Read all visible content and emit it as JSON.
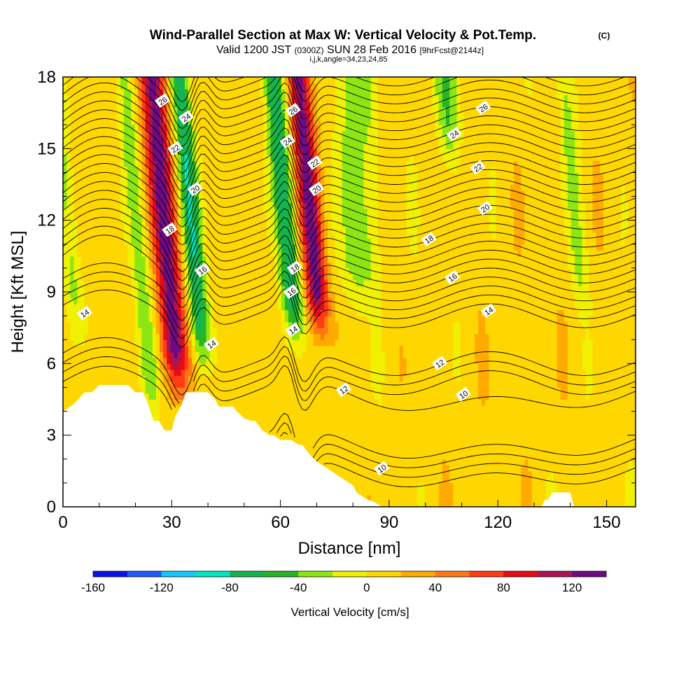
{
  "chart_data": {
    "type": "heatmap",
    "title": "Wind-Parallel Section at Max W: Vertical Velocity & Pot.Temp.",
    "title_mark": "(C)",
    "subtitle_main": "Valid 1200 JST",
    "subtitle_zulu": "(0300Z)",
    "subtitle_date": "SUN 28 Feb 2016",
    "subtitle_fcst": "[9hrFcst@2144z]",
    "subtitle2": "i,j,k,angle=34,23,24,85",
    "xlabel": "Distance [nm]",
    "ylabel": "Height [Kft MSL]",
    "xlim": [
      0,
      158
    ],
    "ylim": [
      0,
      18
    ],
    "x_ticks": [
      "0",
      "30",
      "60",
      "90",
      "120",
      "150"
    ],
    "y_ticks": [
      "0",
      "3",
      "6",
      "9",
      "12",
      "15",
      "18"
    ],
    "colorbar": {
      "label": "Vertical Velocity [cm/s]",
      "tick_labels": [
        "-160",
        "-120",
        "-80",
        "-40",
        "0",
        "40",
        "80",
        "120"
      ],
      "range": [
        -160,
        140
      ],
      "step": 20,
      "colors": [
        "#0a14e6",
        "#1e5aff",
        "#14c8ff",
        "#00e6be",
        "#14b450",
        "#28b428",
        "#8ce614",
        "#f0f000",
        "#ffd700",
        "#ffaa00",
        "#ff7814",
        "#ff3c14",
        "#e60a14",
        "#aa1450",
        "#6e0a82"
      ]
    },
    "field": {
      "background_value": 10,
      "plumes": [
        {
          "x": 29.5,
          "w": 3.5,
          "value": 125,
          "y_from": 5.5
        },
        {
          "x": 37,
          "w": 2.6,
          "value": -85,
          "y_from": 6.5
        },
        {
          "x": 63,
          "w": 2.8,
          "value": -85,
          "y_from": 7.8
        },
        {
          "x": 70,
          "w": 3.0,
          "value": 125,
          "y_from": 8.0
        },
        {
          "x": 82,
          "w": 5.0,
          "value": -40,
          "y_from": 9.0
        },
        {
          "x": 22,
          "w": 2.5,
          "value": -40,
          "y_from": 4.5
        },
        {
          "x": 110,
          "w": 3.5,
          "value": -40,
          "y_from": 15.0
        },
        {
          "x": 143,
          "w": 2.5,
          "value": -30,
          "y_from": 9.0
        },
        {
          "x": 3,
          "w": 2.5,
          "value": -30,
          "y_from": 8.0
        }
      ]
    },
    "isentropes": {
      "levels": [
        10,
        12,
        14,
        16,
        18,
        20,
        22,
        24,
        26
      ],
      "labels": [
        {
          "text": "26",
          "x": 27.5,
          "y": 17.0
        },
        {
          "text": "24",
          "x": 34,
          "y": 16.3
        },
        {
          "text": "22",
          "x": 31,
          "y": 15.0
        },
        {
          "text": "20",
          "x": 36.5,
          "y": 13.3
        },
        {
          "text": "18",
          "x": 29.5,
          "y": 11.6
        },
        {
          "text": "16",
          "x": 38.5,
          "y": 9.9
        },
        {
          "text": "14",
          "x": 6,
          "y": 8.1
        },
        {
          "text": "14",
          "x": 41,
          "y": 6.8
        },
        {
          "text": "26",
          "x": 63.5,
          "y": 16.6
        },
        {
          "text": "24",
          "x": 62,
          "y": 15.3
        },
        {
          "text": "22",
          "x": 69.5,
          "y": 14.4
        },
        {
          "text": "20",
          "x": 70,
          "y": 13.3
        },
        {
          "text": "18",
          "x": 64,
          "y": 10.0
        },
        {
          "text": "16",
          "x": 63,
          "y": 9.0
        },
        {
          "text": "14",
          "x": 63.5,
          "y": 7.4
        },
        {
          "text": "12",
          "x": 77.5,
          "y": 4.9
        },
        {
          "text": "10",
          "x": 88,
          "y": 1.6
        },
        {
          "text": "26",
          "x": 116,
          "y": 16.7
        },
        {
          "text": "24",
          "x": 108,
          "y": 15.6
        },
        {
          "text": "22",
          "x": 114.5,
          "y": 14.2
        },
        {
          "text": "20",
          "x": 116.5,
          "y": 12.5
        },
        {
          "text": "18",
          "x": 101,
          "y": 11.2
        },
        {
          "text": "16",
          "x": 107.5,
          "y": 9.6
        },
        {
          "text": "14",
          "x": 117.5,
          "y": 8.2
        },
        {
          "text": "12",
          "x": 104,
          "y": 6.0
        },
        {
          "text": "10",
          "x": 110.5,
          "y": 4.7
        }
      ]
    },
    "terrain": {
      "x": [
        0,
        3,
        6,
        8,
        10,
        14,
        18,
        20,
        22,
        23,
        25,
        26.5,
        28,
        30,
        31,
        32.5,
        34,
        35,
        36.5,
        38,
        40,
        42,
        43,
        45,
        47,
        48,
        50,
        52,
        53,
        55,
        57,
        58,
        60,
        62,
        63,
        65,
        66,
        68,
        70,
        72,
        74,
        76,
        78,
        80,
        81,
        84,
        86,
        88,
        89,
        90,
        92,
        94,
        120,
        132,
        133,
        134,
        135,
        140,
        141,
        150,
        158
      ],
      "y": [
        4.0,
        4.3,
        4.8,
        4.8,
        5.1,
        5.1,
        5.1,
        4.8,
        4.8,
        4.5,
        3.6,
        3.6,
        3.2,
        3.2,
        3.8,
        4.2,
        4.8,
        4.8,
        4.8,
        4.8,
        4.8,
        4.5,
        4.2,
        4.2,
        4.2,
        4.0,
        3.7,
        3.6,
        3.6,
        3.2,
        3.0,
        3.0,
        2.8,
        2.8,
        2.8,
        2.6,
        2.6,
        2.2,
        1.9,
        1.7,
        1.5,
        1.3,
        1.1,
        0.9,
        0.6,
        0.3,
        0.2,
        0.0,
        0.0,
        0.0,
        0.0,
        0.0,
        0.0,
        0.0,
        0.3,
        0.3,
        0.6,
        0.6,
        0.0,
        0.0,
        0.0
      ]
    }
  }
}
